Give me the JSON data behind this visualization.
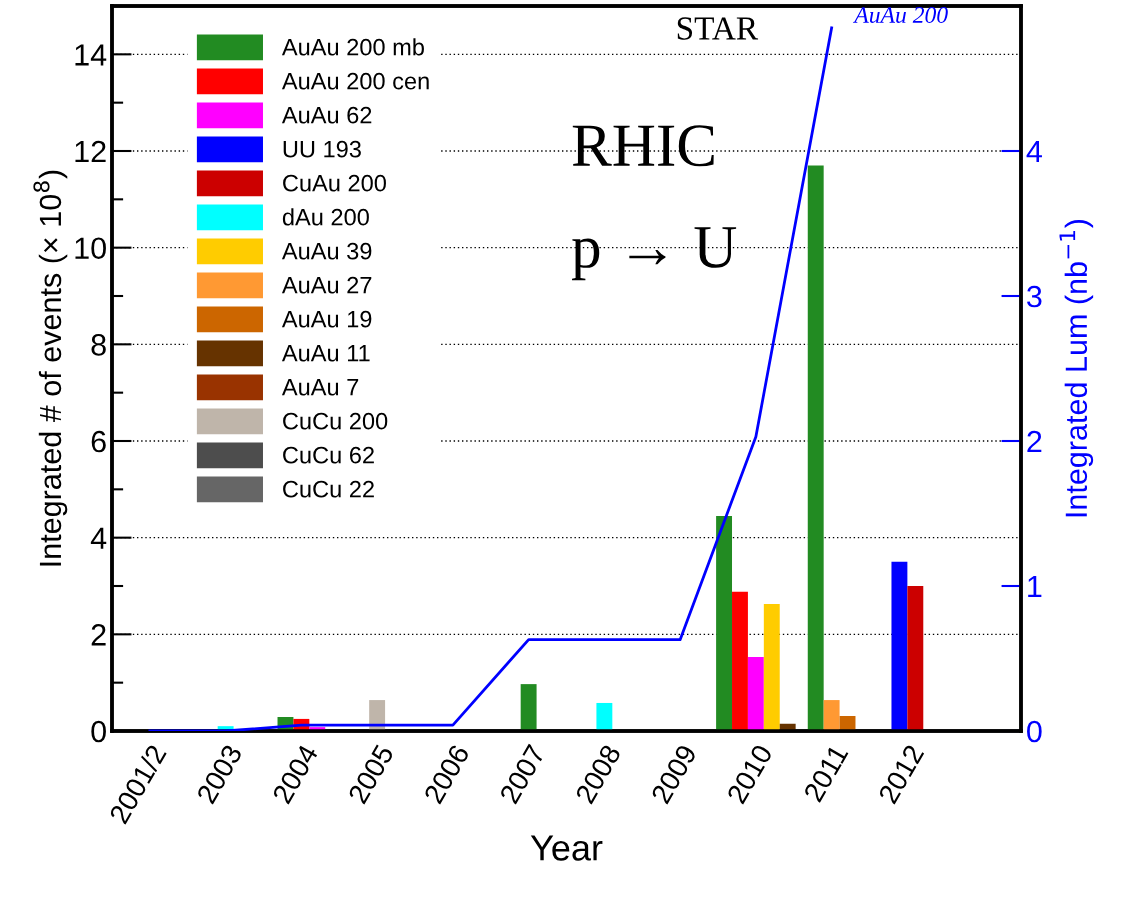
{
  "chart_data": {
    "type": "bar",
    "xlabel": "Year",
    "ylabel": "Integrated # of events (× 10$^{8}$)",
    "y2label": "Integrated Lum (nb$^{−1}$)",
    "categories": [
      "2001/2",
      "2003",
      "2004",
      "2005",
      "2006",
      "2007",
      "2008",
      "2009",
      "2010",
      "2011",
      "2012",
      null
    ],
    "ylim": [
      0,
      15
    ],
    "yticks": [
      0,
      2,
      4,
      6,
      8,
      10,
      12,
      14
    ],
    "y2lim": [
      0,
      5
    ],
    "y2ticks": [
      0,
      1,
      2,
      3,
      4
    ],
    "grid": "y",
    "legend": "top left",
    "annotations": [
      "STAR",
      "RHIC",
      "p → U"
    ],
    "series": [
      {
        "name": "AuAu 200 mb",
        "color": "#228b22",
        "values": [
          null,
          null,
          0.29,
          null,
          null,
          0.97,
          null,
          null,
          4.45,
          11.7,
          null,
          null
        ]
      },
      {
        "name": "AuAu 200 cen",
        "color": "#ff0000",
        "values": [
          null,
          null,
          0.25,
          null,
          null,
          null,
          null,
          null,
          2.88,
          null,
          null,
          null
        ]
      },
      {
        "name": "AuAu 62",
        "color": "#ff00ff",
        "values": [
          null,
          null,
          0.08,
          null,
          null,
          null,
          null,
          null,
          1.53,
          null,
          null,
          null
        ]
      },
      {
        "name": "UU 193",
        "color": "#0000ff",
        "values": [
          null,
          null,
          null,
          null,
          null,
          null,
          null,
          null,
          null,
          null,
          3.5,
          null
        ]
      },
      {
        "name": "CuAu 200",
        "color": "#cc0000",
        "values": [
          null,
          null,
          null,
          null,
          null,
          null,
          null,
          null,
          null,
          null,
          3.0,
          null
        ]
      },
      {
        "name": "dAu 200",
        "color": "#00ffff",
        "values": [
          null,
          0.1,
          null,
          null,
          null,
          null,
          0.58,
          null,
          null,
          null,
          null,
          null
        ]
      },
      {
        "name": "AuAu 39",
        "color": "#ffcc00",
        "values": [
          null,
          null,
          null,
          null,
          null,
          null,
          null,
          null,
          2.63,
          null,
          null,
          null
        ]
      },
      {
        "name": "AuAu 27",
        "color": "#ff9933",
        "values": [
          null,
          null,
          null,
          null,
          null,
          null,
          null,
          null,
          null,
          0.64,
          null,
          null
        ]
      },
      {
        "name": "AuAu 19",
        "color": "#cc6600",
        "values": [
          null,
          null,
          null,
          null,
          null,
          null,
          null,
          null,
          null,
          0.31,
          null,
          null
        ]
      },
      {
        "name": "AuAu 11",
        "color": "#663300",
        "values": [
          null,
          null,
          null,
          null,
          null,
          null,
          null,
          null,
          0.15,
          null,
          null,
          null
        ]
      },
      {
        "name": "AuAu 7",
        "color": "#993300",
        "values": [
          null,
          null,
          null,
          null,
          null,
          null,
          null,
          null,
          null,
          null,
          null,
          null
        ]
      },
      {
        "name": "CuCu 200",
        "color": "#bfb5aa",
        "values": [
          null,
          null,
          null,
          0.64,
          null,
          null,
          null,
          null,
          null,
          null,
          null,
          null
        ]
      },
      {
        "name": "CuCu 62",
        "color": "#4d4d4d",
        "values": [
          null,
          null,
          null,
          null,
          null,
          null,
          null,
          null,
          null,
          null,
          null,
          null
        ]
      },
      {
        "name": "CuCu 22",
        "color": "#666666",
        "values": [
          null,
          null,
          null,
          null,
          null,
          null,
          null,
          null,
          null,
          null,
          null,
          null
        ]
      },
      {
        "name": "AuAu 200",
        "type": "line",
        "axis": "y2",
        "color": "#0000ff",
        "values": [
          0,
          0,
          0.04,
          0.04,
          0.04,
          0.63,
          0.63,
          0.63,
          2.03,
          4.85,
          null,
          null
        ]
      }
    ]
  }
}
